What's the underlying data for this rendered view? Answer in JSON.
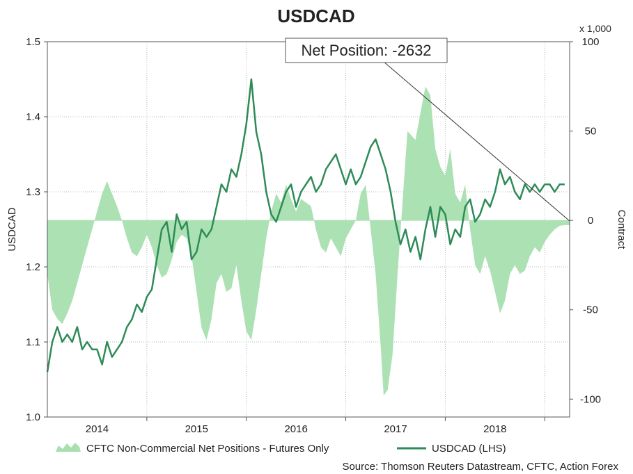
{
  "chart_data": {
    "type": "line",
    "title": "USDCAD",
    "ylabel_left": "USDCAD",
    "ylabel_right": "Contract",
    "right_axis_unit": "x 1,000",
    "annotation": "Net Position: -2632",
    "source": "Source: Thomson Reuters Datastream, CFTC, Action Forex",
    "x_ticks": [
      "2014",
      "2015",
      "2016",
      "2017",
      "2018"
    ],
    "y_left": {
      "min": 1.0,
      "max": 1.5,
      "ticks": [
        "1.0",
        "1.1",
        "1.2",
        "1.3",
        "1.4",
        "1.5"
      ]
    },
    "y_right": {
      "min": -110,
      "max": 100,
      "ticks": [
        "-100",
        "-50",
        "0",
        "50",
        "100"
      ]
    },
    "grid": true,
    "legend_position": "bottom",
    "x_range": [
      2013.5,
      2018.75
    ],
    "series": [
      {
        "name": "CFTC Non-Commercial Net Positions - Futures Only",
        "axis": "right",
        "style": "area",
        "color": "#a8dfb0",
        "points": [
          [
            2013.5,
            -30
          ],
          [
            2013.55,
            -50
          ],
          [
            2013.6,
            -55
          ],
          [
            2013.65,
            -58
          ],
          [
            2013.7,
            -52
          ],
          [
            2013.75,
            -45
          ],
          [
            2013.8,
            -35
          ],
          [
            2013.85,
            -25
          ],
          [
            2013.9,
            -15
          ],
          [
            2013.95,
            -5
          ],
          [
            2014.0,
            5
          ],
          [
            2014.05,
            15
          ],
          [
            2014.1,
            22
          ],
          [
            2014.15,
            15
          ],
          [
            2014.2,
            8
          ],
          [
            2014.25,
            0
          ],
          [
            2014.3,
            -10
          ],
          [
            2014.35,
            -18
          ],
          [
            2014.4,
            -20
          ],
          [
            2014.45,
            -15
          ],
          [
            2014.5,
            -8
          ],
          [
            2014.55,
            -15
          ],
          [
            2014.6,
            -25
          ],
          [
            2014.65,
            -32
          ],
          [
            2014.7,
            -30
          ],
          [
            2014.75,
            -22
          ],
          [
            2014.8,
            -12
          ],
          [
            2014.85,
            -8
          ],
          [
            2014.9,
            -10
          ],
          [
            2014.95,
            -20
          ],
          [
            2015.0,
            -40
          ],
          [
            2015.05,
            -60
          ],
          [
            2015.1,
            -67
          ],
          [
            2015.15,
            -55
          ],
          [
            2015.2,
            -35
          ],
          [
            2015.25,
            -30
          ],
          [
            2015.3,
            -40
          ],
          [
            2015.35,
            -38
          ],
          [
            2015.4,
            -25
          ],
          [
            2015.45,
            -45
          ],
          [
            2015.5,
            -62
          ],
          [
            2015.55,
            -67
          ],
          [
            2015.6,
            -50
          ],
          [
            2015.65,
            -30
          ],
          [
            2015.7,
            -10
          ],
          [
            2015.75,
            5
          ],
          [
            2015.8,
            15
          ],
          [
            2015.85,
            10
          ],
          [
            2015.9,
            20
          ],
          [
            2015.95,
            12
          ],
          [
            2016.0,
            5
          ],
          [
            2016.05,
            12
          ],
          [
            2016.1,
            10
          ],
          [
            2016.15,
            8
          ],
          [
            2016.2,
            -5
          ],
          [
            2016.25,
            -15
          ],
          [
            2016.3,
            -18
          ],
          [
            2016.35,
            -10
          ],
          [
            2016.4,
            -15
          ],
          [
            2016.45,
            -20
          ],
          [
            2016.5,
            -10
          ],
          [
            2016.55,
            -5
          ],
          [
            2016.6,
            0
          ],
          [
            2016.65,
            15
          ],
          [
            2016.7,
            20
          ],
          [
            2016.75,
            -5
          ],
          [
            2016.8,
            -30
          ],
          [
            2016.85,
            -70
          ],
          [
            2016.88,
            -98
          ],
          [
            2016.92,
            -95
          ],
          [
            2016.97,
            -75
          ],
          [
            2017.02,
            -30
          ],
          [
            2017.07,
            10
          ],
          [
            2017.12,
            50
          ],
          [
            2017.2,
            45
          ],
          [
            2017.25,
            60
          ],
          [
            2017.3,
            75
          ],
          [
            2017.35,
            70
          ],
          [
            2017.4,
            40
          ],
          [
            2017.45,
            30
          ],
          [
            2017.5,
            25
          ],
          [
            2017.55,
            40
          ],
          [
            2017.6,
            15
          ],
          [
            2017.65,
            10
          ],
          [
            2017.7,
            20
          ],
          [
            2017.75,
            -5
          ],
          [
            2017.8,
            -25
          ],
          [
            2017.85,
            -30
          ],
          [
            2017.9,
            -20
          ],
          [
            2017.95,
            -28
          ],
          [
            2018.0,
            -40
          ],
          [
            2018.05,
            -52
          ],
          [
            2018.1,
            -45
          ],
          [
            2018.15,
            -30
          ],
          [
            2018.2,
            -25
          ],
          [
            2018.25,
            -30
          ],
          [
            2018.3,
            -28
          ],
          [
            2018.35,
            -20
          ],
          [
            2018.4,
            -15
          ],
          [
            2018.45,
            -18
          ],
          [
            2018.5,
            -12
          ],
          [
            2018.55,
            -8
          ],
          [
            2018.6,
            -5
          ],
          [
            2018.65,
            -3
          ],
          [
            2018.7,
            -2.632
          ],
          [
            2018.75,
            -2.632
          ]
        ]
      },
      {
        "name": "USDCAD (LHS)",
        "axis": "left",
        "style": "line",
        "color": "#2e8b57",
        "points": [
          [
            2013.5,
            1.06
          ],
          [
            2013.55,
            1.1
          ],
          [
            2013.6,
            1.12
          ],
          [
            2013.65,
            1.1
          ],
          [
            2013.7,
            1.11
          ],
          [
            2013.75,
            1.1
          ],
          [
            2013.8,
            1.12
          ],
          [
            2013.85,
            1.09
          ],
          [
            2013.9,
            1.1
          ],
          [
            2013.95,
            1.09
          ],
          [
            2014.0,
            1.09
          ],
          [
            2014.05,
            1.07
          ],
          [
            2014.1,
            1.1
          ],
          [
            2014.15,
            1.08
          ],
          [
            2014.2,
            1.09
          ],
          [
            2014.25,
            1.1
          ],
          [
            2014.3,
            1.12
          ],
          [
            2014.35,
            1.13
          ],
          [
            2014.4,
            1.15
          ],
          [
            2014.45,
            1.14
          ],
          [
            2014.5,
            1.16
          ],
          [
            2014.55,
            1.17
          ],
          [
            2014.6,
            1.21
          ],
          [
            2014.65,
            1.25
          ],
          [
            2014.7,
            1.26
          ],
          [
            2014.75,
            1.22
          ],
          [
            2014.8,
            1.27
          ],
          [
            2014.85,
            1.25
          ],
          [
            2014.9,
            1.26
          ],
          [
            2014.95,
            1.21
          ],
          [
            2015.0,
            1.22
          ],
          [
            2015.05,
            1.25
          ],
          [
            2015.1,
            1.24
          ],
          [
            2015.15,
            1.25
          ],
          [
            2015.2,
            1.28
          ],
          [
            2015.25,
            1.31
          ],
          [
            2015.3,
            1.3
          ],
          [
            2015.35,
            1.33
          ],
          [
            2015.4,
            1.32
          ],
          [
            2015.45,
            1.35
          ],
          [
            2015.5,
            1.39
          ],
          [
            2015.55,
            1.45
          ],
          [
            2015.6,
            1.38
          ],
          [
            2015.65,
            1.35
          ],
          [
            2015.7,
            1.3
          ],
          [
            2015.75,
            1.27
          ],
          [
            2015.8,
            1.26
          ],
          [
            2015.85,
            1.28
          ],
          [
            2015.9,
            1.3
          ],
          [
            2015.95,
            1.31
          ],
          [
            2016.0,
            1.28
          ],
          [
            2016.05,
            1.3
          ],
          [
            2016.1,
            1.31
          ],
          [
            2016.15,
            1.32
          ],
          [
            2016.2,
            1.3
          ],
          [
            2016.25,
            1.31
          ],
          [
            2016.3,
            1.33
          ],
          [
            2016.35,
            1.34
          ],
          [
            2016.4,
            1.35
          ],
          [
            2016.45,
            1.33
          ],
          [
            2016.5,
            1.31
          ],
          [
            2016.55,
            1.33
          ],
          [
            2016.6,
            1.31
          ],
          [
            2016.65,
            1.32
          ],
          [
            2016.7,
            1.34
          ],
          [
            2016.75,
            1.36
          ],
          [
            2016.8,
            1.37
          ],
          [
            2016.85,
            1.35
          ],
          [
            2016.9,
            1.33
          ],
          [
            2016.95,
            1.3
          ],
          [
            2017.0,
            1.26
          ],
          [
            2017.05,
            1.23
          ],
          [
            2017.1,
            1.25
          ],
          [
            2017.15,
            1.22
          ],
          [
            2017.2,
            1.24
          ],
          [
            2017.25,
            1.21
          ],
          [
            2017.3,
            1.25
          ],
          [
            2017.35,
            1.28
          ],
          [
            2017.4,
            1.24
          ],
          [
            2017.45,
            1.28
          ],
          [
            2017.5,
            1.27
          ],
          [
            2017.55,
            1.23
          ],
          [
            2017.6,
            1.25
          ],
          [
            2017.65,
            1.24
          ],
          [
            2017.7,
            1.28
          ],
          [
            2017.75,
            1.29
          ],
          [
            2017.8,
            1.26
          ],
          [
            2017.85,
            1.27
          ],
          [
            2017.9,
            1.29
          ],
          [
            2017.95,
            1.28
          ],
          [
            2018.0,
            1.3
          ],
          [
            2018.05,
            1.33
          ],
          [
            2018.1,
            1.31
          ],
          [
            2018.15,
            1.32
          ],
          [
            2018.2,
            1.3
          ],
          [
            2018.25,
            1.29
          ],
          [
            2018.3,
            1.31
          ],
          [
            2018.35,
            1.3
          ],
          [
            2018.4,
            1.31
          ],
          [
            2018.45,
            1.3
          ],
          [
            2018.5,
            1.31
          ],
          [
            2018.55,
            1.31
          ],
          [
            2018.6,
            1.3
          ],
          [
            2018.65,
            1.31
          ],
          [
            2018.7,
            1.31
          ]
        ]
      }
    ]
  }
}
